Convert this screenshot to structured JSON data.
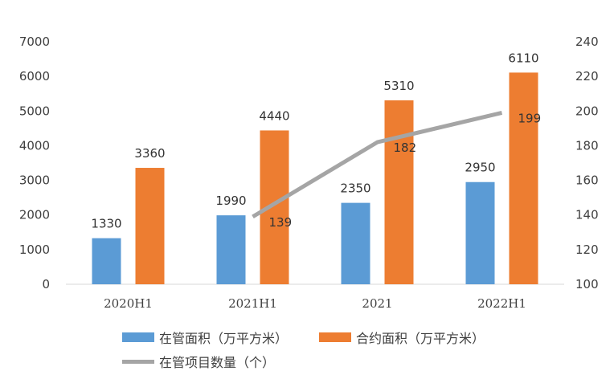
{
  "chart_data": {
    "type": "bar",
    "categories": [
      "2020H1",
      "2021H1",
      "2021",
      "2022H1"
    ],
    "series": [
      {
        "name": "在管面积（万平方米）",
        "kind": "bar",
        "axis": "left",
        "color": "#5B9BD5",
        "values": [
          1330,
          1990,
          2350,
          2950
        ]
      },
      {
        "name": "合约面积（万平方米）",
        "kind": "bar",
        "axis": "left",
        "color": "#ED7D31",
        "values": [
          3360,
          4440,
          5310,
          6110
        ]
      },
      {
        "name": "在管项目数量（个）",
        "kind": "line",
        "axis": "right",
        "color": "#A5A5A5",
        "values": [
          null,
          139,
          182,
          199
        ]
      }
    ],
    "y_left": {
      "ticks": [
        0,
        1000,
        2000,
        3000,
        4000,
        5000,
        6000,
        7000
      ],
      "ylim": [
        0,
        7000
      ]
    },
    "y_right": {
      "ticks": [
        100,
        120,
        140,
        160,
        180,
        200,
        220,
        240
      ],
      "ylim": [
        100,
        240
      ]
    },
    "grid": false,
    "legend_position": "bottom"
  }
}
